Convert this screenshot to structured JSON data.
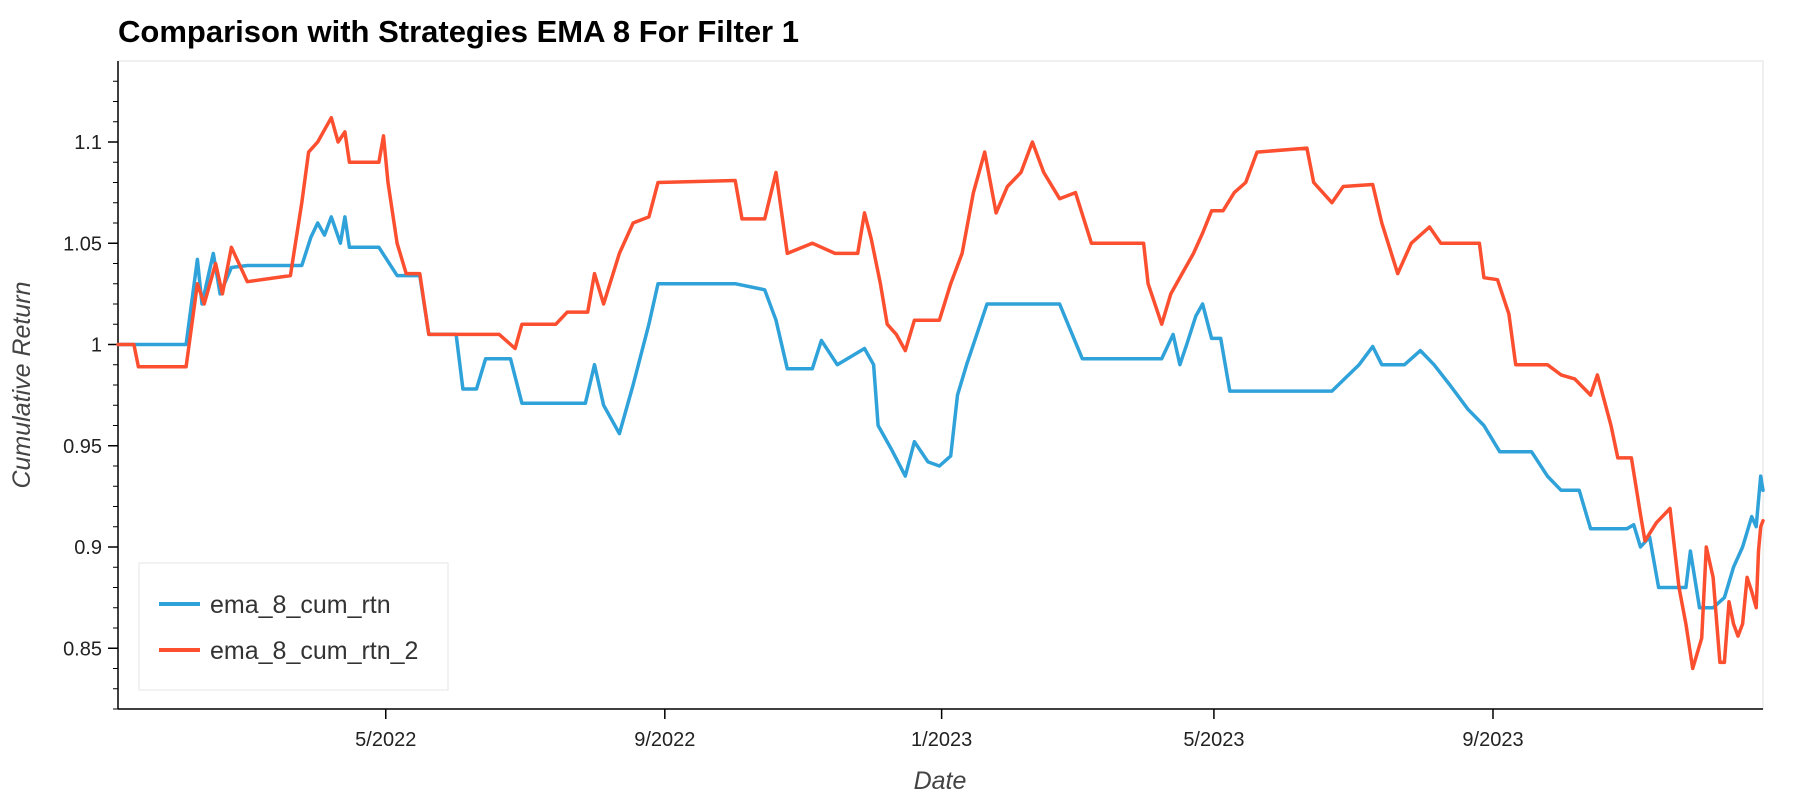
{
  "chart_data": {
    "type": "line",
    "title": "Comparison with Strategies EMA 8 For Filter 1",
    "xlabel": "Date",
    "ylabel": "Cumulative Return",
    "xlim": [
      "2022-01-03",
      "2023-12-29"
    ],
    "ylim": [
      0.82,
      1.14
    ],
    "x_ticks": [
      {
        "label": "5/2022",
        "date": "2022-05-01"
      },
      {
        "label": "9/2022",
        "date": "2022-09-01"
      },
      {
        "label": "1/2023",
        "date": "2023-01-01"
      },
      {
        "label": "5/2023",
        "date": "2023-05-01"
      },
      {
        "label": "9/2023",
        "date": "2023-09-01"
      }
    ],
    "y_ticks": [
      {
        "label": "0.85",
        "value": 0.85
      },
      {
        "label": "0.9",
        "value": 0.9
      },
      {
        "label": "0.95",
        "value": 0.95
      },
      {
        "label": "1",
        "value": 1.0
      },
      {
        "label": "1.05",
        "value": 1.05
      },
      {
        "label": "1.1",
        "value": 1.1
      }
    ],
    "grid": false,
    "legend_position": "bottom-left",
    "series": [
      {
        "name": "ema_8_cum_rtn",
        "color": "#30a2da",
        "points": [
          [
            "2022-01-03",
            1.0
          ],
          [
            "2022-01-20",
            1.0
          ],
          [
            "2022-02-02",
            1.0
          ],
          [
            "2022-02-07",
            1.042
          ],
          [
            "2022-02-09",
            1.02
          ],
          [
            "2022-02-14",
            1.045
          ],
          [
            "2022-02-17",
            1.025
          ],
          [
            "2022-02-22",
            1.038
          ],
          [
            "2022-03-01",
            1.039
          ],
          [
            "2022-03-25",
            1.039
          ],
          [
            "2022-03-29",
            1.053
          ],
          [
            "2022-04-01",
            1.06
          ],
          [
            "2022-04-04",
            1.054
          ],
          [
            "2022-04-07",
            1.063
          ],
          [
            "2022-04-11",
            1.05
          ],
          [
            "2022-04-13",
            1.063
          ],
          [
            "2022-04-15",
            1.048
          ],
          [
            "2022-04-28",
            1.048
          ],
          [
            "2022-05-06",
            1.034
          ],
          [
            "2022-05-16",
            1.034
          ],
          [
            "2022-05-20",
            1.005
          ],
          [
            "2022-06-01",
            1.005
          ],
          [
            "2022-06-04",
            0.978
          ],
          [
            "2022-06-10",
            0.978
          ],
          [
            "2022-06-14",
            0.993
          ],
          [
            "2022-06-25",
            0.993
          ],
          [
            "2022-06-30",
            0.971
          ],
          [
            "2022-07-28",
            0.971
          ],
          [
            "2022-08-01",
            0.99
          ],
          [
            "2022-08-05",
            0.97
          ],
          [
            "2022-08-12",
            0.956
          ],
          [
            "2022-08-18",
            0.98
          ],
          [
            "2022-08-25",
            1.01
          ],
          [
            "2022-08-29",
            1.03
          ],
          [
            "2022-10-02",
            1.03
          ],
          [
            "2022-10-15",
            1.027
          ],
          [
            "2022-10-20",
            1.012
          ],
          [
            "2022-10-25",
            0.988
          ],
          [
            "2022-11-05",
            0.988
          ],
          [
            "2022-11-09",
            1.002
          ],
          [
            "2022-11-16",
            0.99
          ],
          [
            "2022-11-28",
            0.998
          ],
          [
            "2022-12-02",
            0.99
          ],
          [
            "2022-12-04",
            0.96
          ],
          [
            "2022-12-10",
            0.948
          ],
          [
            "2022-12-16",
            0.935
          ],
          [
            "2022-12-20",
            0.952
          ],
          [
            "2022-12-26",
            0.942
          ],
          [
            "2022-12-31",
            0.94
          ],
          [
            "2023-01-05",
            0.945
          ],
          [
            "2023-01-08",
            0.975
          ],
          [
            "2023-01-12",
            0.99
          ],
          [
            "2023-01-21",
            1.02
          ],
          [
            "2023-02-22",
            1.02
          ],
          [
            "2023-03-04",
            0.993
          ],
          [
            "2023-03-31",
            0.993
          ],
          [
            "2023-04-08",
            0.993
          ],
          [
            "2023-04-13",
            1.005
          ],
          [
            "2023-04-16",
            0.99
          ],
          [
            "2023-04-19",
            1.0
          ],
          [
            "2023-04-23",
            1.014
          ],
          [
            "2023-04-26",
            1.02
          ],
          [
            "2023-04-30",
            1.003
          ],
          [
            "2023-05-04",
            1.003
          ],
          [
            "2023-05-08",
            0.977
          ],
          [
            "2023-05-28",
            0.977
          ],
          [
            "2023-06-05",
            0.977
          ],
          [
            "2023-06-11",
            0.977
          ],
          [
            "2023-06-22",
            0.977
          ],
          [
            "2023-07-04",
            0.99
          ],
          [
            "2023-07-10",
            0.999
          ],
          [
            "2023-07-14",
            0.99
          ],
          [
            "2023-07-24",
            0.99
          ],
          [
            "2023-07-31",
            0.997
          ],
          [
            "2023-08-06",
            0.99
          ],
          [
            "2023-08-13",
            0.98
          ],
          [
            "2023-08-21",
            0.968
          ],
          [
            "2023-08-28",
            0.96
          ],
          [
            "2023-09-04",
            0.947
          ],
          [
            "2023-09-18",
            0.947
          ],
          [
            "2023-09-25",
            0.935
          ],
          [
            "2023-10-01",
            0.928
          ],
          [
            "2023-10-09",
            0.928
          ],
          [
            "2023-10-14",
            0.909
          ],
          [
            "2023-10-30",
            0.909
          ],
          [
            "2023-11-02",
            0.911
          ],
          [
            "2023-11-05",
            0.9
          ],
          [
            "2023-11-09",
            0.905
          ],
          [
            "2023-11-13",
            0.88
          ],
          [
            "2023-11-25",
            0.88
          ],
          [
            "2023-11-27",
            0.898
          ],
          [
            "2023-12-01",
            0.87
          ],
          [
            "2023-12-07",
            0.87
          ],
          [
            "2023-12-12",
            0.875
          ],
          [
            "2023-12-16",
            0.89
          ],
          [
            "2023-12-20",
            0.9
          ],
          [
            "2023-12-24",
            0.915
          ],
          [
            "2023-12-26",
            0.91
          ],
          [
            "2023-12-27",
            0.923
          ],
          [
            "2023-12-28",
            0.935
          ],
          [
            "2023-12-29",
            0.928
          ]
        ]
      },
      {
        "name": "ema_8_cum_rtn_2",
        "color": "#fc4f30",
        "points": [
          [
            "2022-01-03",
            1.0
          ],
          [
            "2022-01-10",
            1.0
          ],
          [
            "2022-01-12",
            0.989
          ],
          [
            "2022-01-20",
            0.989
          ],
          [
            "2022-02-02",
            0.989
          ],
          [
            "2022-02-07",
            1.03
          ],
          [
            "2022-02-10",
            1.02
          ],
          [
            "2022-02-15",
            1.04
          ],
          [
            "2022-02-18",
            1.025
          ],
          [
            "2022-02-22",
            1.048
          ],
          [
            "2022-03-01",
            1.031
          ],
          [
            "2022-03-20",
            1.034
          ],
          [
            "2022-03-25",
            1.07
          ],
          [
            "2022-03-28",
            1.095
          ],
          [
            "2022-04-01",
            1.1
          ],
          [
            "2022-04-04",
            1.106
          ],
          [
            "2022-04-07",
            1.112
          ],
          [
            "2022-04-10",
            1.1
          ],
          [
            "2022-04-13",
            1.105
          ],
          [
            "2022-04-15",
            1.09
          ],
          [
            "2022-04-28",
            1.09
          ],
          [
            "2022-04-30",
            1.103
          ],
          [
            "2022-05-02",
            1.08
          ],
          [
            "2022-05-06",
            1.05
          ],
          [
            "2022-05-10",
            1.035
          ],
          [
            "2022-05-16",
            1.035
          ],
          [
            "2022-05-20",
            1.005
          ],
          [
            "2022-06-01",
            1.005
          ],
          [
            "2022-06-20",
            1.005
          ],
          [
            "2022-06-27",
            0.998
          ],
          [
            "2022-06-30",
            1.01
          ],
          [
            "2022-07-15",
            1.01
          ],
          [
            "2022-07-20",
            1.016
          ],
          [
            "2022-07-29",
            1.016
          ],
          [
            "2022-08-01",
            1.035
          ],
          [
            "2022-08-05",
            1.02
          ],
          [
            "2022-08-12",
            1.045
          ],
          [
            "2022-08-18",
            1.06
          ],
          [
            "2022-08-25",
            1.063
          ],
          [
            "2022-08-29",
            1.08
          ],
          [
            "2022-10-02",
            1.081
          ],
          [
            "2022-10-05",
            1.062
          ],
          [
            "2022-10-15",
            1.062
          ],
          [
            "2022-10-20",
            1.085
          ],
          [
            "2022-10-25",
            1.045
          ],
          [
            "2022-11-05",
            1.05
          ],
          [
            "2022-11-15",
            1.045
          ],
          [
            "2022-11-25",
            1.045
          ],
          [
            "2022-11-28",
            1.065
          ],
          [
            "2022-12-01",
            1.052
          ],
          [
            "2022-12-05",
            1.03
          ],
          [
            "2022-12-08",
            1.01
          ],
          [
            "2022-12-12",
            1.005
          ],
          [
            "2022-12-16",
            0.997
          ],
          [
            "2022-12-20",
            1.012
          ],
          [
            "2022-12-31",
            1.012
          ],
          [
            "2023-01-05",
            1.03
          ],
          [
            "2023-01-10",
            1.045
          ],
          [
            "2023-01-15",
            1.075
          ],
          [
            "2023-01-20",
            1.095
          ],
          [
            "2023-01-25",
            1.065
          ],
          [
            "2023-01-30",
            1.078
          ],
          [
            "2023-02-05",
            1.085
          ],
          [
            "2023-02-10",
            1.1
          ],
          [
            "2023-02-15",
            1.085
          ],
          [
            "2023-02-22",
            1.072
          ],
          [
            "2023-03-01",
            1.075
          ],
          [
            "2023-03-08",
            1.05
          ],
          [
            "2023-03-31",
            1.05
          ],
          [
            "2023-04-02",
            1.03
          ],
          [
            "2023-04-08",
            1.01
          ],
          [
            "2023-04-12",
            1.025
          ],
          [
            "2023-04-17",
            1.035
          ],
          [
            "2023-04-22",
            1.045
          ],
          [
            "2023-04-26",
            1.055
          ],
          [
            "2023-04-30",
            1.066
          ],
          [
            "2023-05-05",
            1.066
          ],
          [
            "2023-05-10",
            1.075
          ],
          [
            "2023-05-15",
            1.08
          ],
          [
            "2023-05-20",
            1.095
          ],
          [
            "2023-06-11",
            1.097
          ],
          [
            "2023-06-14",
            1.08
          ],
          [
            "2023-06-22",
            1.07
          ],
          [
            "2023-06-27",
            1.078
          ],
          [
            "2023-07-10",
            1.079
          ],
          [
            "2023-07-14",
            1.06
          ],
          [
            "2023-07-21",
            1.035
          ],
          [
            "2023-07-27",
            1.05
          ],
          [
            "2023-08-04",
            1.058
          ],
          [
            "2023-08-09",
            1.05
          ],
          [
            "2023-08-26",
            1.05
          ],
          [
            "2023-08-28",
            1.033
          ],
          [
            "2023-09-03",
            1.032
          ],
          [
            "2023-09-08",
            1.015
          ],
          [
            "2023-09-11",
            0.99
          ],
          [
            "2023-09-25",
            0.99
          ],
          [
            "2023-10-01",
            0.985
          ],
          [
            "2023-10-07",
            0.983
          ],
          [
            "2023-10-14",
            0.975
          ],
          [
            "2023-10-17",
            0.985
          ],
          [
            "2023-10-23",
            0.96
          ],
          [
            "2023-10-26",
            0.944
          ],
          [
            "2023-11-01",
            0.944
          ],
          [
            "2023-11-05",
            0.916
          ],
          [
            "2023-11-07",
            0.903
          ],
          [
            "2023-11-12",
            0.912
          ],
          [
            "2023-11-18",
            0.919
          ],
          [
            "2023-11-22",
            0.88
          ],
          [
            "2023-11-25",
            0.862
          ],
          [
            "2023-11-28",
            0.84
          ],
          [
            "2023-12-02",
            0.855
          ],
          [
            "2023-12-04",
            0.9
          ],
          [
            "2023-12-07",
            0.885
          ],
          [
            "2023-12-10",
            0.843
          ],
          [
            "2023-12-12",
            0.843
          ],
          [
            "2023-12-14",
            0.873
          ],
          [
            "2023-12-16",
            0.862
          ],
          [
            "2023-12-18",
            0.856
          ],
          [
            "2023-12-20",
            0.862
          ],
          [
            "2023-12-22",
            0.885
          ],
          [
            "2023-12-24",
            0.878
          ],
          [
            "2023-12-26",
            0.87
          ],
          [
            "2023-12-27",
            0.898
          ],
          [
            "2023-12-28",
            0.91
          ],
          [
            "2023-12-29",
            0.913
          ]
        ]
      }
    ]
  }
}
